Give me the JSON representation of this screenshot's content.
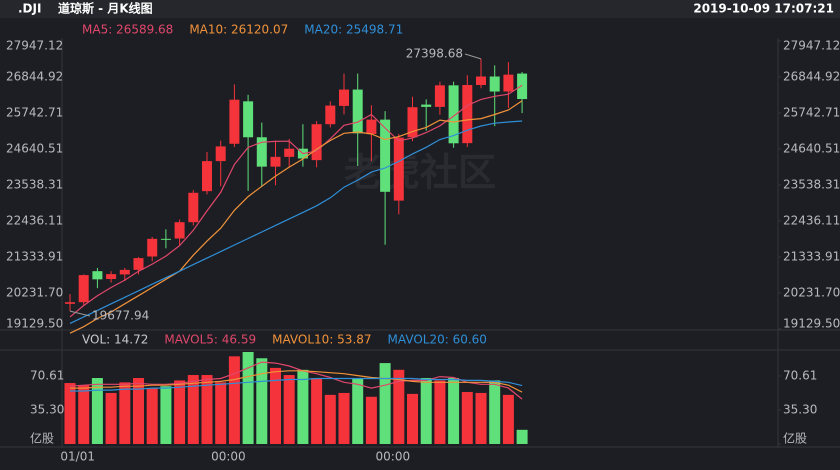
{
  "header": {
    "symbol": ".DJI",
    "title": "道琼斯 - 月K线图",
    "time": "2019-10-09 17:07:21",
    "watermark": "老虎社区"
  },
  "chart_data": [
    {
      "type": "candlestick",
      "categories": [
        null,
        "01/01",
        null,
        null,
        null,
        null,
        null,
        null,
        null,
        null,
        null,
        null,
        "00:00",
        null,
        null,
        null,
        null,
        null,
        null,
        null,
        null,
        null,
        null,
        null,
        "00:00",
        null,
        null,
        null,
        null,
        null,
        null,
        null,
        null,
        null
      ],
      "open": [
        19900,
        19950,
        20900,
        20660,
        20800,
        20940,
        21350,
        21890,
        21900,
        22400,
        23350,
        24270,
        24800,
        26100,
        25000,
        24100,
        24400,
        24650,
        24300,
        25400,
        25960,
        26460,
        25100,
        25540,
        23060,
        25000,
        26000,
        25930,
        26590,
        24820,
        26600,
        26860,
        26400,
        26950
      ],
      "high": [
        20200,
        20800,
        21000,
        20900,
        21000,
        21330,
        21950,
        22180,
        22480,
        23380,
        24550,
        24900,
        26620,
        26300,
        25450,
        24900,
        24950,
        25400,
        25500,
        26100,
        26950,
        26950,
        25980,
        25800,
        25100,
        26240,
        26160,
        26700,
        26700,
        26900,
        27398.68,
        27200,
        27300,
        27000
      ],
      "low": [
        19677.94,
        19830,
        20380,
        20550,
        20600,
        20800,
        21200,
        21600,
        21700,
        22300,
        23250,
        23500,
        24700,
        23360,
        23500,
        23530,
        24100,
        24100,
        24080,
        25300,
        25700,
        24120,
        24270,
        21710,
        22640,
        24880,
        25200,
        25690,
        24680,
        24700,
        26500,
        25340,
        25900,
        25740
      ],
      "close": [
        19950,
        20780,
        20650,
        20810,
        20940,
        21300,
        21890,
        21870,
        22400,
        23300,
        24270,
        24720,
        26150,
        25000,
        24100,
        24400,
        24650,
        24350,
        25400,
        25970,
        26460,
        25120,
        25540,
        23330,
        24990,
        25920,
        25930,
        26590,
        24815,
        26600,
        26860,
        26400,
        26917,
        26170
      ],
      "up_color": "#f5333a",
      "down_color": "#5fe07a",
      "series": [
        {
          "name": "MA5: 26589.68",
          "color": "#e0476b",
          "values": [
            19500,
            19850,
            20150,
            20400,
            20626,
            20896,
            21118,
            21362,
            21682,
            22152,
            22746,
            23312,
            24168,
            24688,
            24848,
            24874,
            24880,
            24500,
            24580,
            24954,
            25366,
            25460,
            25698,
            25284,
            24888,
            24980,
            25142,
            25352,
            25649,
            25971,
            26159,
            26253,
            26318,
            26589.68
          ]
        },
        {
          "name": "MA10: 26120.07",
          "color": "#f0923a",
          "values": [
            19000,
            19200,
            19450,
            19650,
            19900,
            20150,
            20400,
            20650,
            20900,
            21389,
            21821,
            22215,
            22765,
            23184,
            23500,
            23810,
            24086,
            24334,
            24634,
            24901,
            25120,
            25160,
            25099,
            24932,
            25021,
            25173,
            25301,
            25525,
            25467,
            25530,
            25570,
            25698,
            25836,
            26120.07
          ]
        },
        {
          "name": "MA20: 25498.71",
          "color": "#2f8fd8",
          "values": [
            19300,
            19500,
            19700,
            19900,
            20100,
            20300,
            20500,
            20700,
            20900,
            21100,
            21300,
            21500,
            21700,
            21900,
            22100,
            22300,
            22500,
            22700,
            22900,
            23145,
            23470,
            23687,
            23932,
            24058,
            24261,
            24492,
            24694,
            24930,
            25051,
            25216,
            25346,
            25430,
            25468,
            25498.71
          ]
        }
      ],
      "ylim": [
        19129.5,
        27947.12
      ],
      "yticks": [
        {
          "value": 19129.5,
          "label": "19129.50"
        },
        {
          "value": 20231.7,
          "label": "20231.70"
        },
        21333.91,
        22436.11,
        23538.31,
        24640.51,
        25742.71,
        26844.92,
        27947.12
      ]
    },
    {
      "type": "bar",
      "name": "VOL: 14.72",
      "color": "#c8c9cc",
      "values": [
        63.3,
        61,
        68.5,
        53,
        64,
        68.5,
        58,
        60,
        66,
        71.6,
        71.6,
        64,
        91,
        95.5,
        89,
        79,
        71.6,
        77,
        68.5,
        51,
        53,
        68.5,
        49,
        84,
        77,
        52,
        68.5,
        66,
        68.5,
        54,
        53,
        66,
        51,
        14.72
      ],
      "series": [
        {
          "name": "MAVOL5: 46.59",
          "color": "#e0476b",
          "values": [
            60,
            61,
            62,
            62,
            62,
            63,
            62,
            62,
            63,
            65,
            67,
            68,
            73,
            79,
            85,
            84,
            81,
            76,
            73,
            69,
            64,
            62,
            58,
            61,
            65,
            66,
            66,
            70,
            69,
            64,
            62,
            62,
            58,
            46.59
          ]
        },
        {
          "name": "MAVOL10: 53.87",
          "color": "#f0923a",
          "values": [
            58,
            58,
            59,
            59,
            60,
            60,
            61,
            61,
            62,
            63,
            64,
            65,
            67,
            70,
            73,
            75,
            76,
            76,
            75,
            74,
            73,
            71,
            69,
            68,
            67,
            65,
            64,
            64,
            64,
            64,
            64,
            64,
            61,
            53.87
          ]
        },
        {
          "name": "MAVOL20: 60.60",
          "color": "#2f8fd8",
          "values": [
            55,
            55,
            56,
            56,
            57,
            57,
            58,
            58,
            59,
            60,
            61,
            62,
            63,
            64,
            65,
            66,
            67,
            67,
            68,
            68,
            68,
            68,
            68,
            68,
            68,
            68,
            67,
            67,
            67,
            66,
            66,
            65,
            64,
            60.6
          ]
        }
      ],
      "ylim": [
        0,
        95.5
      ],
      "yticks": [
        {
          "value": 0,
          "label": "亿股"
        },
        {
          "value": 35.3,
          "label": "35.30"
        },
        70.61
      ]
    }
  ]
}
